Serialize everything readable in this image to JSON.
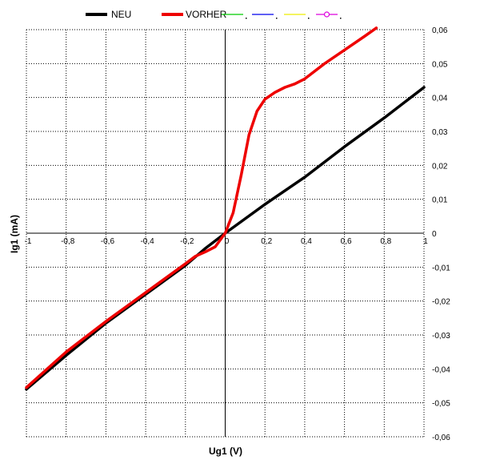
{
  "chart_data": {
    "type": "line",
    "xlabel": "Ug1 (V)",
    "ylabel": "Ig1 (mA)",
    "xlim": [
      -1,
      1
    ],
    "ylim": [
      -0.06,
      0.06
    ],
    "x_ticks": [
      "-1",
      "-0,8",
      "-0,6",
      "-0,4",
      "-0,2",
      "0",
      "0,2",
      "0,4",
      "0,6",
      "0,8",
      "1"
    ],
    "y_ticks": [
      "0,06",
      "0,05",
      "0,04",
      "0,03",
      "0,02",
      "0,01",
      "0",
      "-0,01",
      "-0,02",
      "-0,03",
      "-0,04",
      "-0,05",
      "-0,06"
    ],
    "grid": true,
    "legend_position": "top",
    "series": [
      {
        "name": "NEU",
        "color": "#000000",
        "points": [
          [
            -1,
            -0.046
          ],
          [
            -0.8,
            -0.036
          ],
          [
            -0.6,
            -0.0265
          ],
          [
            -0.4,
            -0.018
          ],
          [
            -0.2,
            -0.0095
          ],
          [
            -0.1,
            -0.0045
          ],
          [
            0,
            0
          ],
          [
            0.2,
            0.0085
          ],
          [
            0.4,
            0.0165
          ],
          [
            0.6,
            0.0255
          ],
          [
            0.8,
            0.034
          ],
          [
            1,
            0.043
          ]
        ]
      },
      {
        "name": "VORHER",
        "color": "#ee0000",
        "points": [
          [
            -1,
            -0.0455
          ],
          [
            -0.8,
            -0.035
          ],
          [
            -0.6,
            -0.026
          ],
          [
            -0.4,
            -0.0175
          ],
          [
            -0.2,
            -0.009
          ],
          [
            -0.15,
            -0.0068
          ],
          [
            -0.1,
            -0.0055
          ],
          [
            -0.05,
            -0.004
          ],
          [
            0,
            0
          ],
          [
            0.04,
            0.006
          ],
          [
            0.08,
            0.017
          ],
          [
            0.12,
            0.029
          ],
          [
            0.16,
            0.036
          ],
          [
            0.2,
            0.0395
          ],
          [
            0.25,
            0.0415
          ],
          [
            0.3,
            0.043
          ],
          [
            0.35,
            0.044
          ],
          [
            0.4,
            0.0455
          ],
          [
            0.5,
            0.05
          ],
          [
            0.6,
            0.054
          ],
          [
            0.7,
            0.058
          ],
          [
            0.76,
            0.0605
          ]
        ]
      },
      {
        "name": "",
        "color": "#00cc00",
        "points": []
      },
      {
        "name": "",
        "color": "#0000ee",
        "points": []
      },
      {
        "name": "",
        "color": "#eeee00",
        "points": []
      },
      {
        "name": "",
        "color": "#dd00dd",
        "points": []
      }
    ]
  }
}
